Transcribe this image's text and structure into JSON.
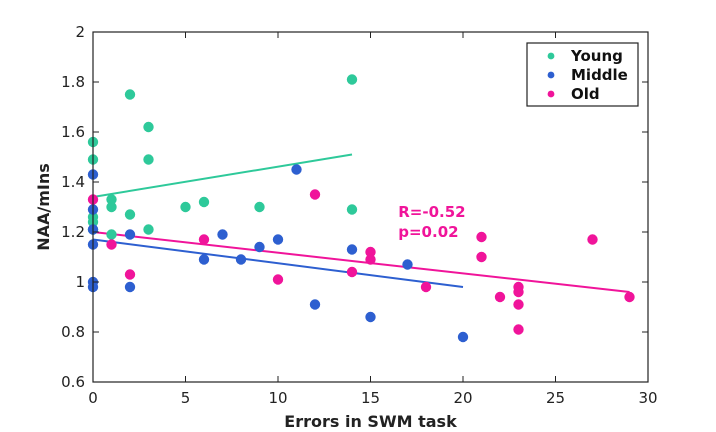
{
  "chart_data": {
    "type": "scatter",
    "title": "",
    "xlabel": "Errors in SWM task",
    "ylabel": "NAA/mIns",
    "xlim": [
      0,
      30
    ],
    "ylim": [
      0.6,
      2
    ],
    "x_ticks": [
      0,
      5,
      10,
      15,
      20,
      25,
      30
    ],
    "x_tick_labels": [
      "0",
      "5",
      "10",
      "15",
      "20",
      "25",
      "30"
    ],
    "y_ticks": [
      0.6,
      0.8,
      1,
      1.2,
      1.4,
      1.6,
      1.8,
      2
    ],
    "y_tick_labels": [
      "0.6",
      "0.8",
      "1",
      "1.2",
      "1.4",
      "1.6",
      "1.8",
      "2"
    ],
    "grid": false,
    "legend_position": "top-right",
    "series": [
      {
        "name": "Young",
        "color": "#2ec99a",
        "points": [
          [
            0,
            1.56
          ],
          [
            0,
            1.49
          ],
          [
            0,
            1.26
          ],
          [
            0,
            1.24
          ],
          [
            0,
            1.21
          ],
          [
            1,
            1.33
          ],
          [
            1,
            1.3
          ],
          [
            1,
            1.19
          ],
          [
            2,
            1.75
          ],
          [
            2,
            1.27
          ],
          [
            3,
            1.62
          ],
          [
            3,
            1.49
          ],
          [
            3,
            1.21
          ],
          [
            5,
            1.3
          ],
          [
            6,
            1.32
          ],
          [
            9,
            1.3
          ],
          [
            14,
            1.81
          ],
          [
            14,
            1.29
          ]
        ],
        "fit": {
          "x": [
            0,
            14
          ],
          "y": [
            1.34,
            1.51
          ]
        }
      },
      {
        "name": "Middle",
        "color": "#2d5fd0",
        "points": [
          [
            0,
            1.43
          ],
          [
            0,
            1.29
          ],
          [
            0,
            1.21
          ],
          [
            0,
            1.15
          ],
          [
            0,
            1.0
          ],
          [
            0,
            0.98
          ],
          [
            2,
            1.19
          ],
          [
            2,
            0.98
          ],
          [
            6,
            1.09
          ],
          [
            7,
            1.19
          ],
          [
            8,
            1.09
          ],
          [
            9,
            1.14
          ],
          [
            10,
            1.17
          ],
          [
            11,
            1.45
          ],
          [
            12,
            0.91
          ],
          [
            14,
            1.13
          ],
          [
            15,
            0.86
          ],
          [
            17,
            1.07
          ],
          [
            20,
            0.78
          ]
        ],
        "fit": {
          "x": [
            0,
            20
          ],
          "y": [
            1.17,
            0.98
          ]
        }
      },
      {
        "name": "Old",
        "color": "#f0149a",
        "points": [
          [
            0,
            1.33
          ],
          [
            1,
            1.15
          ],
          [
            2,
            1.03
          ],
          [
            6,
            1.17
          ],
          [
            10,
            1.01
          ],
          [
            12,
            1.35
          ],
          [
            14,
            1.04
          ],
          [
            15,
            1.12
          ],
          [
            15,
            1.09
          ],
          [
            18,
            0.98
          ],
          [
            21,
            1.18
          ],
          [
            21,
            1.1
          ],
          [
            22,
            0.94
          ],
          [
            23,
            0.98
          ],
          [
            23,
            0.96
          ],
          [
            23,
            0.91
          ],
          [
            23,
            0.81
          ],
          [
            27,
            1.17
          ],
          [
            29,
            0.94
          ]
        ],
        "fit": {
          "x": [
            0,
            29
          ],
          "y": [
            1.2,
            0.96
          ]
        }
      }
    ],
    "annotations": [
      {
        "text": "R=-0.52",
        "x": 16.5,
        "y": 1.26,
        "color": "#f0149a"
      },
      {
        "text": "p=0.02",
        "x": 16.5,
        "y": 1.18,
        "color": "#f0149a"
      }
    ]
  }
}
